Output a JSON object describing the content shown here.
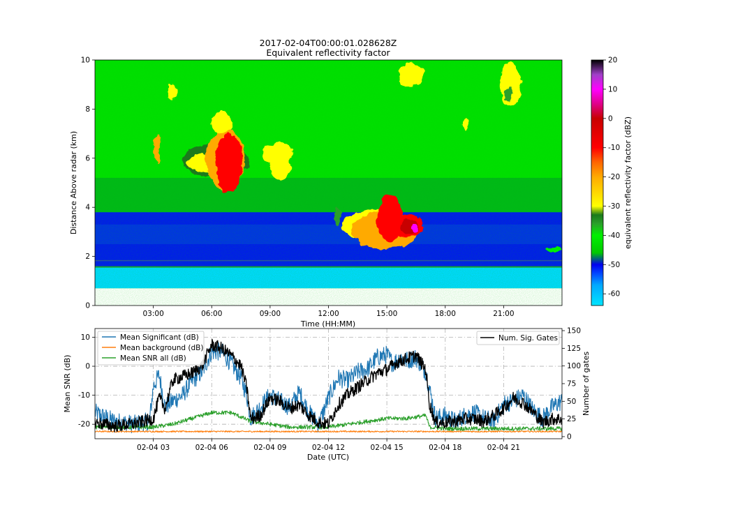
{
  "chart_data": [
    {
      "type": "heatmap",
      "title": "2017-02-04T00:00:01.028628Z",
      "subtitle": "Equivalent reflectivity factor",
      "xlabel": "Time (HH:MM)",
      "ylabel": "Distance Above radar  (km)",
      "x_tick_labels": [
        "03:00",
        "06:00",
        "09:00",
        "12:00",
        "15:00",
        "18:00",
        "21:00"
      ],
      "x_tick_hours": [
        3,
        6,
        9,
        12,
        15,
        18,
        21
      ],
      "xlim_hours": [
        0,
        24
      ],
      "ylim": [
        0,
        10
      ],
      "y_ticks": [
        0,
        2,
        4,
        6,
        8,
        10
      ],
      "colorbar": {
        "label": "equivalent reflectivity factor (dBZ)",
        "range": [
          -64,
          20
        ],
        "ticks": [
          20,
          10,
          0,
          -10,
          -20,
          -30,
          -40,
          -50,
          -60
        ],
        "colors": [
          {
            "v": -64,
            "c": "#00e5ff"
          },
          {
            "v": -57,
            "c": "#00a8ff"
          },
          {
            "v": -53,
            "c": "#0046ff"
          },
          {
            "v": -50,
            "c": "#0000f0"
          },
          {
            "v": -46,
            "c": "#00c800"
          },
          {
            "v": -40,
            "c": "#00f000"
          },
          {
            "v": -36,
            "c": "#2aa02a"
          },
          {
            "v": -33,
            "c": "#1a7a1a"
          },
          {
            "v": -30,
            "c": "#ffff00"
          },
          {
            "v": -20,
            "c": "#ffaa00"
          },
          {
            "v": -15,
            "c": "#ff6600"
          },
          {
            "v": -10,
            "c": "#ff0000"
          },
          {
            "v": 0,
            "c": "#c80000"
          },
          {
            "v": 5,
            "c": "#e0008a"
          },
          {
            "v": 10,
            "c": "#ff00ff"
          },
          {
            "v": 15,
            "c": "#a040c8"
          },
          {
            "v": 20,
            "c": "#000000"
          }
        ]
      },
      "features": [
        {
          "desc": "surface clutter band",
          "y_range_km": [
            0.7,
            1.55
          ],
          "color": "#00e5ff"
        },
        {
          "desc": "noise layer",
          "y_range_km": [
            1.55,
            3.8
          ],
          "color": "#0000f0"
        },
        {
          "desc": "cloud 1",
          "x_range_hours": [
            4.2,
            7.8
          ],
          "y_range_km": [
            4.4,
            8.0
          ],
          "peak_dbz": -5
        },
        {
          "desc": "cloud 2",
          "x_range_hours": [
            12.8,
            17.2
          ],
          "y_range_km": [
            2.2,
            4.6
          ],
          "peak_dbz": 10
        },
        {
          "desc": "upper cloud",
          "x_range_hours": [
            15.5,
            17.0
          ],
          "y_range_km": [
            8.8,
            9.9
          ],
          "peak_dbz": -28
        },
        {
          "desc": "upper cloud",
          "x_range_hours": [
            20.8,
            22.0
          ],
          "y_range_km": [
            8.0,
            9.9
          ],
          "peak_dbz": -28
        }
      ]
    },
    {
      "type": "line",
      "xlabel": "Date (UTC)",
      "ylabel": "Mean SNR (dB)",
      "ylabel_right": "Number of gates",
      "x_tick_labels": [
        "02-04 03",
        "02-04 06",
        "02-04 09",
        "02-04 12",
        "02-04 15",
        "02-04 18",
        "02-04 21"
      ],
      "x_tick_hours": [
        3,
        6,
        9,
        12,
        15,
        18,
        21
      ],
      "xlim_hours": [
        0,
        24
      ],
      "ylim": [
        -25,
        13
      ],
      "y_ticks": [
        10,
        0,
        -10,
        -20
      ],
      "y_right_lim": [
        -3,
        153
      ],
      "y_right_ticks": [
        150,
        125,
        100,
        75,
        50,
        25,
        0
      ],
      "grid": true,
      "legend_left": "upper-left",
      "legend_right": "upper-right",
      "series": [
        {
          "name": "Mean Significant (dB)",
          "color": "#1f77b4",
          "axis": "left",
          "x": [
            0,
            1,
            2,
            2.8,
            3,
            3.3,
            3.6,
            4,
            4.5,
            5,
            5.5,
            6,
            6.5,
            7,
            7.5,
            7.8,
            8,
            8.5,
            9,
            9.5,
            10,
            10.5,
            11,
            11.5,
            12,
            12.5,
            13,
            13.5,
            14,
            14.5,
            15,
            15.3,
            15.7,
            16,
            16.5,
            17,
            17.2,
            17.5,
            18,
            18.5,
            19,
            19.5,
            20,
            20.5,
            21,
            21.5,
            22,
            22.5,
            23,
            23.5,
            24
          ],
          "y": [
            -16,
            -19,
            -20,
            -19,
            -7,
            -3,
            -14,
            -12,
            -10,
            -5,
            -2,
            5,
            5,
            1,
            -4,
            -10,
            -18,
            -14,
            -10,
            -12,
            -14,
            -9,
            -16,
            -20,
            -11,
            -4,
            -5,
            -2,
            -1,
            3,
            4,
            1,
            3,
            2,
            3,
            -2,
            -8,
            -18,
            -17,
            -19,
            -17,
            -16,
            -18,
            -19,
            -13,
            -12,
            -10,
            -15,
            -18,
            -14,
            -12
          ]
        },
        {
          "name": "Mean background (dB)",
          "color": "#ff7f0e",
          "axis": "left",
          "x": [
            0,
            24
          ],
          "y": [
            -22.5,
            -22.5
          ]
        },
        {
          "name": "Mean SNR all (dB)",
          "color": "#2ca02c",
          "axis": "left",
          "x": [
            0,
            3,
            4,
            5,
            6,
            7,
            8,
            9,
            10,
            12,
            13,
            14,
            15,
            16,
            17,
            17.2,
            18,
            24
          ],
          "y": [
            -21,
            -21,
            -20,
            -18,
            -16,
            -16,
            -19,
            -20,
            -21,
            -21,
            -20,
            -19,
            -18,
            -18,
            -17,
            -21,
            -21.5,
            -21.5
          ]
        },
        {
          "name": "Num. Sig. Gates",
          "color": "#000000",
          "axis": "right",
          "x": [
            0,
            1,
            2,
            3,
            3.3,
            3.6,
            4,
            4.5,
            5,
            5.5,
            6,
            6.5,
            7,
            7.5,
            7.8,
            8,
            8.5,
            9,
            9.5,
            10,
            10.5,
            11,
            11.5,
            12,
            12.5,
            13,
            13.5,
            14,
            14.5,
            15,
            15.5,
            16,
            16.5,
            17,
            17.2,
            17.5,
            18,
            18.5,
            19,
            19.5,
            20,
            20.5,
            21,
            21.5,
            22,
            22.5,
            23,
            23.5,
            24
          ],
          "y": [
            20,
            15,
            18,
            25,
            55,
            40,
            80,
            85,
            90,
            100,
            130,
            125,
            115,
            100,
            70,
            25,
            30,
            55,
            50,
            40,
            45,
            30,
            20,
            18,
            45,
            60,
            70,
            80,
            90,
            95,
            105,
            110,
            115,
            95,
            45,
            20,
            20,
            22,
            25,
            25,
            22,
            30,
            40,
            55,
            48,
            35,
            20,
            25,
            25
          ]
        }
      ]
    }
  ]
}
